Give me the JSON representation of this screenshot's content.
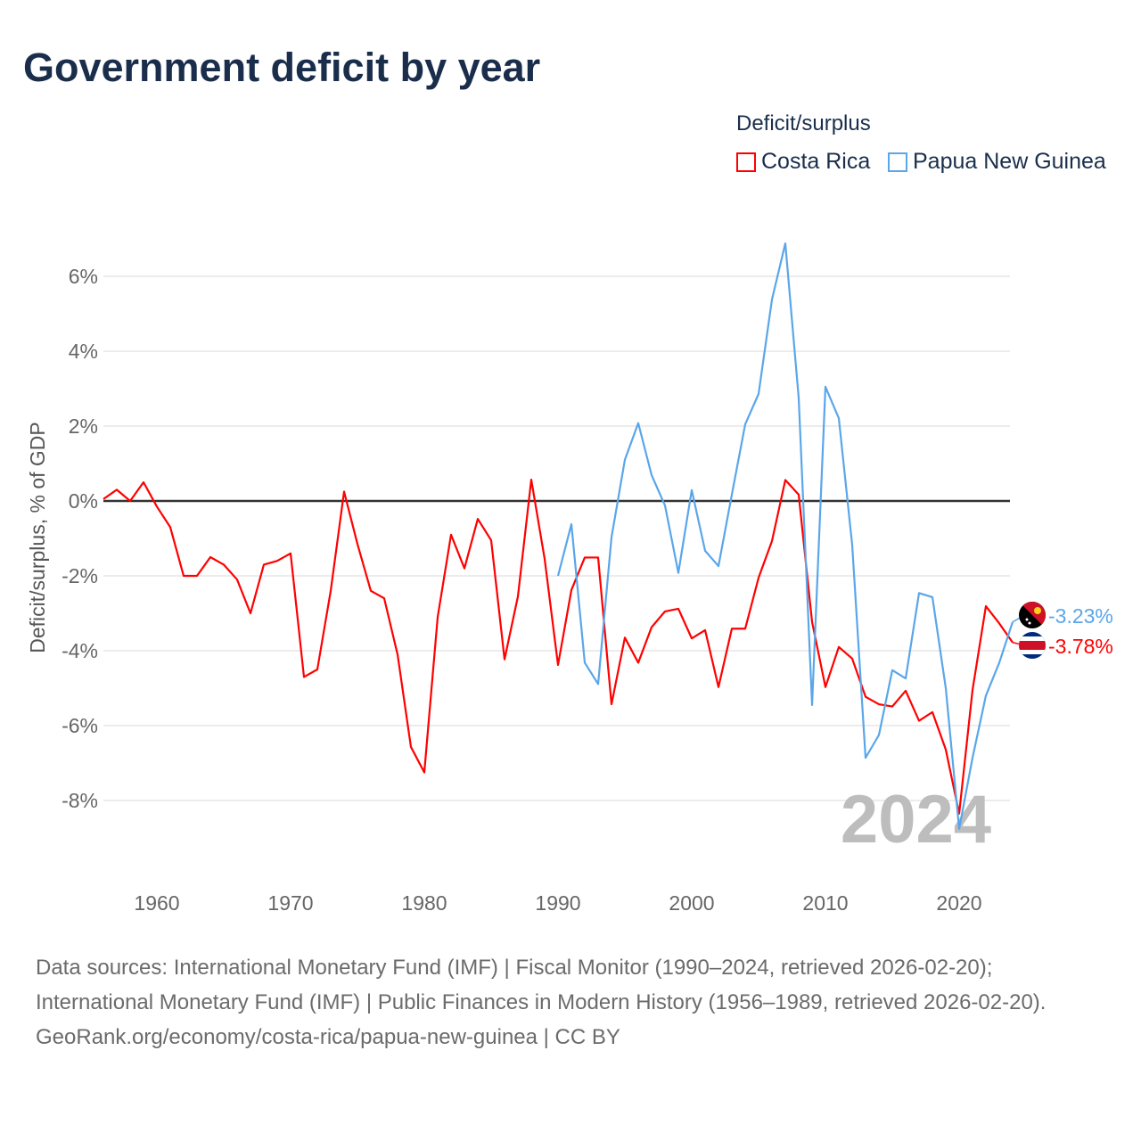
{
  "title": "Government deficit by year",
  "legend": {
    "title": "Deficit/surplus",
    "items": [
      {
        "label": "Costa Rica",
        "color": "#ff0000"
      },
      {
        "label": "Papua New Guinea",
        "color": "#5aa6ea"
      }
    ]
  },
  "year_watermark": "2024",
  "footer": {
    "sources": "Data sources: International Monetary Fund (IMF) | Fiscal Monitor (1990–2024, retrieved 2026-02-20); International Monetary Fund (IMF) | Public Finances in Modern History (1956–1989, retrieved 2026-02-20).",
    "credit": "GeoRank.org/economy/costa-rica/papua-new-guinea | CC BY"
  },
  "chart_data": {
    "type": "line",
    "title": "Government deficit by year",
    "xlabel": "",
    "ylabel": "Deficit/surplus, % of GDP",
    "xlim": [
      1956,
      2024
    ],
    "ylim": [
      -10,
      7
    ],
    "x_ticks": [
      1960,
      1970,
      1980,
      1990,
      2000,
      2010,
      2020
    ],
    "y_ticks": [
      {
        "v": 6,
        "label": "6%"
      },
      {
        "v": 4,
        "label": "4%"
      },
      {
        "v": 2,
        "label": "2%"
      },
      {
        "v": 0,
        "label": "0%"
      },
      {
        "v": -2,
        "label": "-2%"
      },
      {
        "v": -4,
        "label": "-4%"
      },
      {
        "v": -6,
        "label": "-6%"
      },
      {
        "v": -8,
        "label": "-8%"
      }
    ],
    "grid": true,
    "legend_position": "top-right",
    "series": [
      {
        "name": "Costa Rica",
        "color": "#ff0000",
        "end_label": "-3.78%",
        "start_year": 1956,
        "values": [
          0.05,
          0.3,
          0.0,
          0.5,
          -0.15,
          -0.7,
          -2.0,
          -2.0,
          -1.5,
          -1.7,
          -2.1,
          -3.0,
          -1.7,
          -1.6,
          -1.4,
          -4.7,
          -4.5,
          -2.4,
          0.25,
          -1.15,
          -2.4,
          -2.6,
          -4.1,
          -6.57,
          -7.25,
          -3.1,
          -0.9,
          -1.8,
          -0.48,
          -1.05,
          -4.23,
          -2.55,
          0.57,
          -1.55,
          -4.38,
          -2.38,
          -1.51,
          -1.51,
          -5.43,
          -3.65,
          -4.32,
          -3.37,
          -2.95,
          -2.88,
          -3.67,
          -3.45,
          -4.97,
          -3.41,
          -3.41,
          -2.05,
          -1.07,
          0.56,
          0.17,
          -3.23,
          -4.97,
          -3.9,
          -4.21,
          -5.23,
          -5.43,
          -5.49,
          -5.07,
          -5.87,
          -5.64,
          -6.64,
          -8.35,
          -5.05,
          -2.81,
          -3.27,
          -3.78
        ]
      },
      {
        "name": "Papua New Guinea",
        "color": "#5aa6ea",
        "end_label": "-3.23%",
        "start_year": 1990,
        "values": [
          -2.0,
          -0.62,
          -4.32,
          -4.89,
          -0.97,
          1.1,
          2.08,
          0.69,
          -0.12,
          -1.92,
          0.29,
          -1.33,
          -1.74,
          0.17,
          2.05,
          2.86,
          5.38,
          6.88,
          2.75,
          -5.45,
          3.05,
          2.21,
          -1.17,
          -6.86,
          -6.25,
          -4.52,
          -4.74,
          -2.46,
          -2.57,
          -5.0,
          -8.76,
          -6.86,
          -5.2,
          -4.32,
          -3.23
        ]
      }
    ]
  }
}
